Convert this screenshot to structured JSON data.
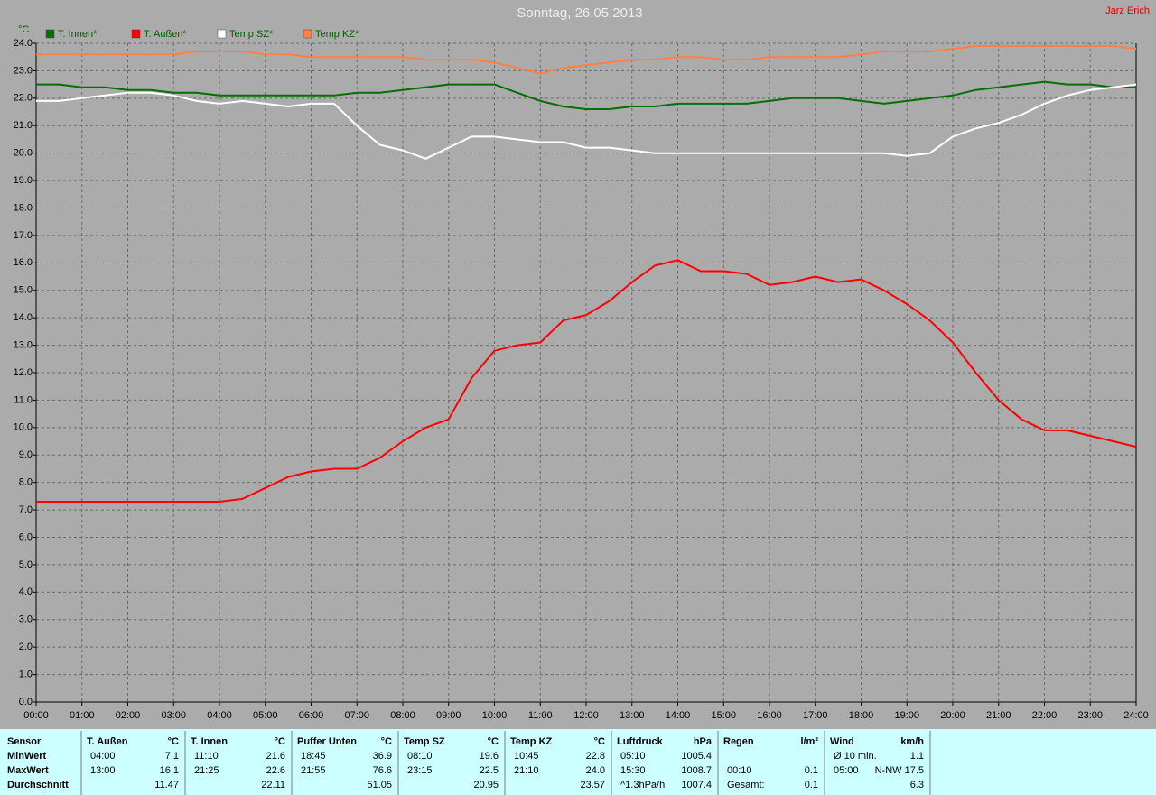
{
  "chart_data": {
    "type": "line",
    "title": "Sonntag, 26.05.2013",
    "author": "Jarz Erich",
    "y_label": "°C",
    "grid": true,
    "legend": "top-left",
    "x": [
      0,
      0.5,
      1,
      1.5,
      2,
      2.5,
      3,
      3.5,
      4,
      4.5,
      5,
      5.5,
      6,
      6.5,
      7,
      7.5,
      8,
      8.5,
      9,
      9.5,
      10,
      10.5,
      11,
      11.5,
      12,
      12.5,
      13,
      13.5,
      14,
      14.5,
      15,
      15.5,
      16,
      16.5,
      17,
      17.5,
      18,
      18.5,
      19,
      19.5,
      20,
      20.5,
      21,
      21.5,
      22,
      22.5,
      23,
      23.5,
      24
    ],
    "xlim": [
      0,
      24
    ],
    "xticks": [
      {
        "value": 0,
        "label": "00:00"
      },
      {
        "value": 1,
        "label": "01:00"
      },
      {
        "value": 2,
        "label": "02:00"
      },
      {
        "value": 3,
        "label": "03:00"
      },
      {
        "value": 4,
        "label": "04:00"
      },
      {
        "value": 5,
        "label": "05:00"
      },
      {
        "value": 6,
        "label": "06:00"
      },
      {
        "value": 7,
        "label": "07:00"
      },
      {
        "value": 8,
        "label": "08:00"
      },
      {
        "value": 9,
        "label": "09:00"
      },
      {
        "value": 10,
        "label": "10:00"
      },
      {
        "value": 11,
        "label": "11:00"
      },
      {
        "value": 12,
        "label": "12:00"
      },
      {
        "value": 13,
        "label": "13:00"
      },
      {
        "value": 14,
        "label": "14:00"
      },
      {
        "value": 15,
        "label": "15:00"
      },
      {
        "value": 16,
        "label": "16:00"
      },
      {
        "value": 17,
        "label": "17:00"
      },
      {
        "value": 18,
        "label": "18:00"
      },
      {
        "value": 19,
        "label": "19:00"
      },
      {
        "value": 20,
        "label": "20:00"
      },
      {
        "value": 21,
        "label": "21:00"
      },
      {
        "value": 22,
        "label": "22:00"
      },
      {
        "value": 23,
        "label": "23:00"
      },
      {
        "value": 24,
        "label": "24:00"
      }
    ],
    "ylim": [
      0,
      24
    ],
    "yticks": [
      {
        "value": 0,
        "label": "0.0"
      },
      {
        "value": 1,
        "label": "1.0"
      },
      {
        "value": 2,
        "label": "2.0"
      },
      {
        "value": 3,
        "label": "3.0"
      },
      {
        "value": 4,
        "label": "4.0"
      },
      {
        "value": 5,
        "label": "5.0"
      },
      {
        "value": 6,
        "label": "6.0"
      },
      {
        "value": 7,
        "label": "7.0"
      },
      {
        "value": 8,
        "label": "8.0"
      },
      {
        "value": 9,
        "label": "9.0"
      },
      {
        "value": 10,
        "label": "10.0"
      },
      {
        "value": 11,
        "label": "11.0"
      },
      {
        "value": 12,
        "label": "12.0"
      },
      {
        "value": 13,
        "label": "13.0"
      },
      {
        "value": 14,
        "label": "14.0"
      },
      {
        "value": 15,
        "label": "15.0"
      },
      {
        "value": 16,
        "label": "16.0"
      },
      {
        "value": 17,
        "label": "17.0"
      },
      {
        "value": 18,
        "label": "18.0"
      },
      {
        "value": 19,
        "label": "19.0"
      },
      {
        "value": 20,
        "label": "20.0"
      },
      {
        "value": 21,
        "label": "21.0"
      },
      {
        "value": 22,
        "label": "22.0"
      },
      {
        "value": 23,
        "label": "23.0"
      },
      {
        "value": 24,
        "label": "24.0"
      }
    ],
    "series": [
      {
        "name": "T. Innen*",
        "color": "#007000",
        "values": [
          22.5,
          22.5,
          22.4,
          22.4,
          22.3,
          22.3,
          22.2,
          22.2,
          22.1,
          22.1,
          22.1,
          22.1,
          22.1,
          22.1,
          22.2,
          22.2,
          22.3,
          22.4,
          22.5,
          22.5,
          22.5,
          22.2,
          21.9,
          21.7,
          21.6,
          21.6,
          21.7,
          21.7,
          21.8,
          21.8,
          21.8,
          21.8,
          21.9,
          22.0,
          22.0,
          22.0,
          21.9,
          21.8,
          21.9,
          22.0,
          22.1,
          22.3,
          22.4,
          22.5,
          22.6,
          22.5,
          22.5,
          22.4,
          22.4
        ]
      },
      {
        "name": "T. Außen*",
        "color": "#ff0000",
        "values": [
          7.3,
          7.3,
          7.3,
          7.3,
          7.3,
          7.3,
          7.3,
          7.3,
          7.3,
          7.4,
          7.8,
          8.2,
          8.4,
          8.5,
          8.5,
          8.9,
          9.5,
          10.0,
          10.3,
          11.8,
          12.8,
          13.0,
          13.1,
          13.9,
          14.1,
          14.6,
          15.3,
          15.9,
          16.1,
          15.7,
          15.7,
          15.6,
          15.2,
          15.3,
          15.5,
          15.3,
          15.4,
          15.0,
          14.5,
          13.9,
          13.1,
          12.0,
          11.0,
          10.3,
          9.9,
          9.9,
          9.7,
          9.5,
          9.3
        ]
      },
      {
        "name": "Temp SZ*",
        "color": "#ffffff",
        "values": [
          21.9,
          21.9,
          22.0,
          22.1,
          22.2,
          22.2,
          22.1,
          21.9,
          21.8,
          21.9,
          21.8,
          21.7,
          21.8,
          21.8,
          21.0,
          20.3,
          20.1,
          19.8,
          20.2,
          20.6,
          20.6,
          20.5,
          20.4,
          20.4,
          20.2,
          20.2,
          20.1,
          20.0,
          20.0,
          20.0,
          20.0,
          20.0,
          20.0,
          20.0,
          20.0,
          20.0,
          20.0,
          20.0,
          19.9,
          20.0,
          20.6,
          20.9,
          21.1,
          21.4,
          21.8,
          22.1,
          22.3,
          22.4,
          22.5
        ]
      },
      {
        "name": "Temp KZ*",
        "color": "#ff8040",
        "values": [
          23.6,
          23.6,
          23.6,
          23.6,
          23.6,
          23.6,
          23.6,
          23.7,
          23.7,
          23.7,
          23.6,
          23.6,
          23.5,
          23.5,
          23.5,
          23.5,
          23.5,
          23.4,
          23.4,
          23.4,
          23.3,
          23.1,
          22.9,
          23.1,
          23.2,
          23.3,
          23.4,
          23.4,
          23.5,
          23.5,
          23.4,
          23.4,
          23.5,
          23.5,
          23.5,
          23.5,
          23.6,
          23.7,
          23.7,
          23.7,
          23.8,
          23.9,
          23.9,
          23.9,
          23.9,
          23.9,
          23.9,
          23.9,
          23.8
        ]
      }
    ]
  },
  "stats": {
    "row_labels": [
      "Sensor",
      "MinWert",
      "MaxWert",
      "Durchschnitt"
    ],
    "groups": [
      {
        "name": "T. Außen",
        "unit": "°C",
        "rows": [
          {
            "time": "04:00",
            "value": "7.1"
          },
          {
            "time": "13:00",
            "value": "16.1"
          },
          {
            "value": "11.47"
          }
        ]
      },
      {
        "name": "T. Innen",
        "unit": "°C",
        "rows": [
          {
            "time": "11:10",
            "value": "21.6"
          },
          {
            "time": "21:25",
            "value": "22.6"
          },
          {
            "value": "22.11"
          }
        ]
      },
      {
        "name": "Puffer Unten",
        "unit": "°C",
        "rows": [
          {
            "time": "18:45",
            "value": "36.9"
          },
          {
            "time": "21:55",
            "value": "76.6"
          },
          {
            "value": "51.05"
          }
        ]
      },
      {
        "name": "Temp SZ",
        "unit": "°C",
        "rows": [
          {
            "time": "08:10",
            "value": "19.6"
          },
          {
            "time": "23:15",
            "value": "22.5"
          },
          {
            "value": "20.95"
          }
        ]
      },
      {
        "name": "Temp KZ",
        "unit": "°C",
        "rows": [
          {
            "time": "10:45",
            "value": "22.8"
          },
          {
            "time": "21:10",
            "value": "24.0"
          },
          {
            "value": "23.57"
          }
        ]
      },
      {
        "name": "Luftdruck",
        "unit": "hPa",
        "rows": [
          {
            "time": "05:10",
            "value": "1005.4"
          },
          {
            "time": "15:30",
            "value": "1008.7"
          },
          {
            "time": "^1.3hPa/h",
            "value": "1007.4"
          }
        ]
      },
      {
        "name": "Regen",
        "unit": "l/m²",
        "rows": [
          null,
          {
            "time": "00:10",
            "value": "0.1"
          },
          {
            "time": "Gesamt:",
            "value": "0.1"
          }
        ]
      },
      {
        "name": "Wind",
        "unit": "km/h",
        "rows": [
          {
            "time": "Ø 10 min.",
            "value": "1.1"
          },
          {
            "time": "05:00",
            "value": "N-NW 17.5"
          },
          {
            "value": "6.3"
          }
        ]
      }
    ]
  }
}
